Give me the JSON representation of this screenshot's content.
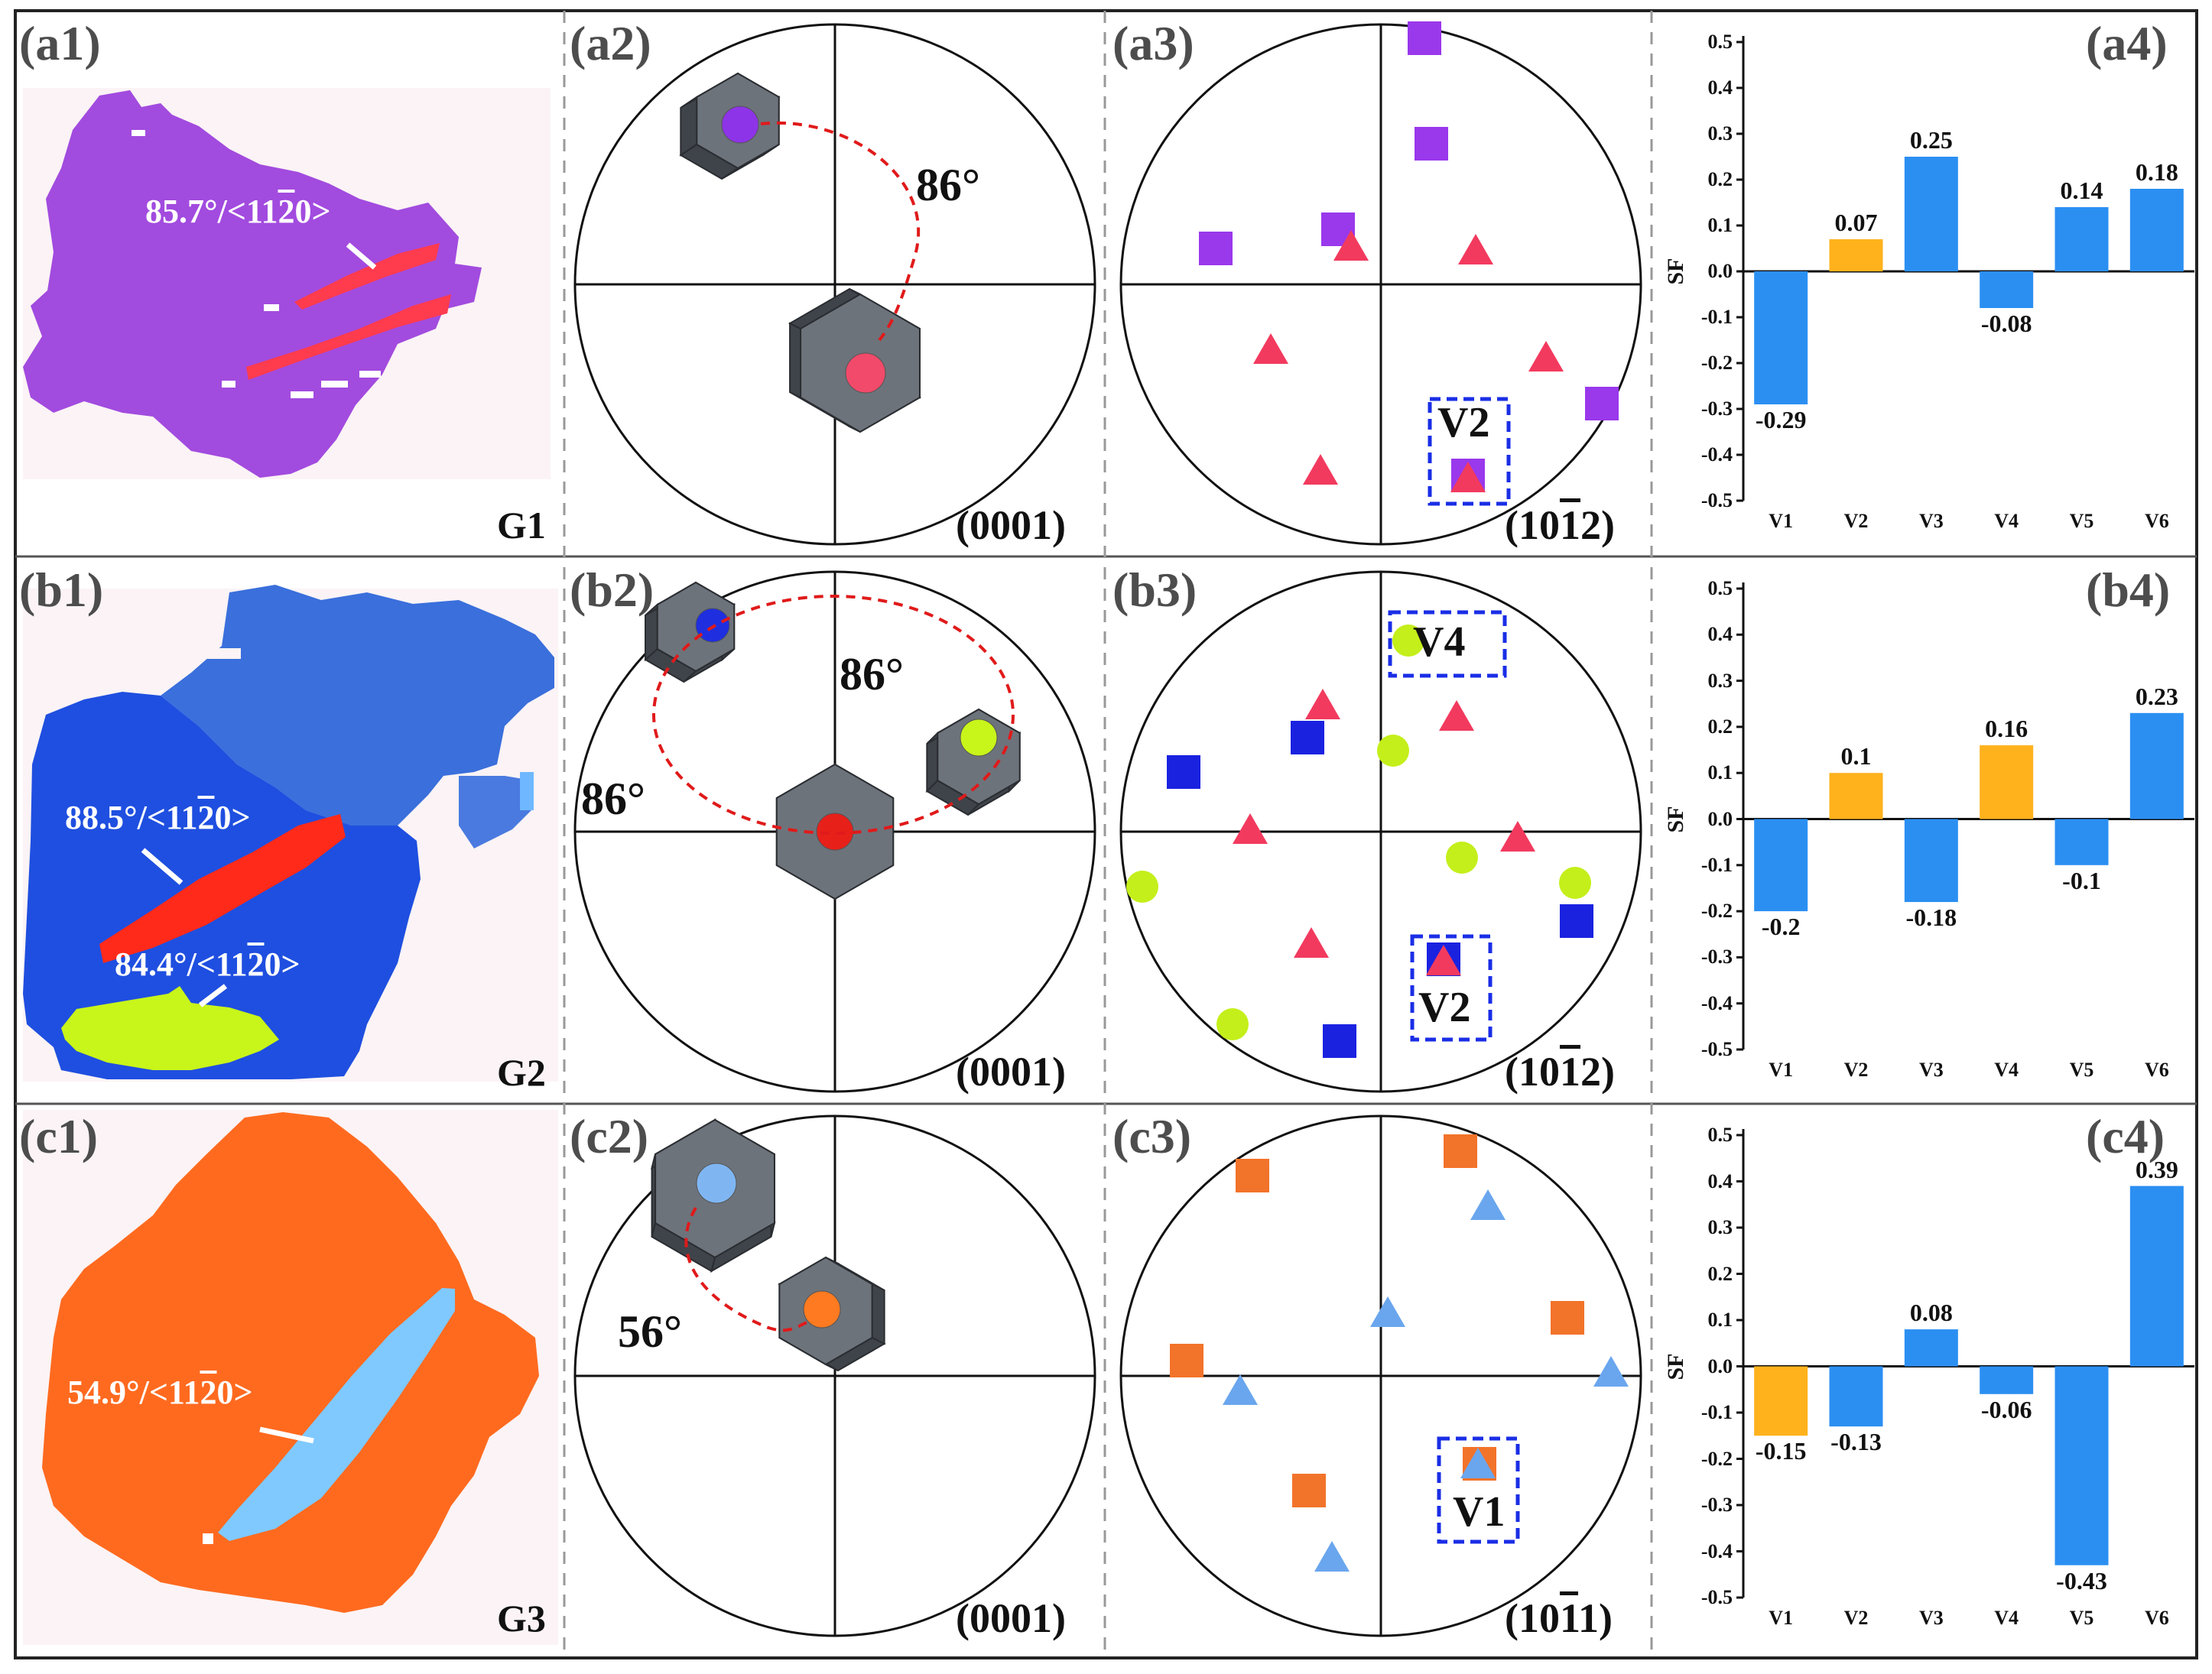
{
  "panel_labels": {
    "a1": "(a1)",
    "a2": "(a2)",
    "a3": "(a3)",
    "a4": "(a4)",
    "b1": "(b1)",
    "b2": "(b2)",
    "b3": "(b3)",
    "b4": "(b4)",
    "c1": "(c1)",
    "c2": "(c2)",
    "c3": "(c3)",
    "c4": "(c4)"
  },
  "grains": {
    "g1": "G1",
    "g2": "G2",
    "g3": "G3"
  },
  "misorientation": {
    "a1": {
      "pre": "85.7°/<11",
      "over": "2",
      "post": "0>"
    },
    "b1_top": {
      "pre": "88.5°/<11",
      "over": "2",
      "post": "0>"
    },
    "b1_bot": {
      "pre": "84.4°/<11",
      "over": "2",
      "post": "0>"
    },
    "c1": {
      "pre": "54.9°/<11",
      "over": "2",
      "post": "0>"
    }
  },
  "colors": {
    "g1_matrix": "#a24bdf",
    "g1_twin": "#ff3b4e",
    "g2_matrix": "#1f4fe0",
    "g2_twin_red": "#ff2a1a",
    "g2_twin_green": "#c8f51a",
    "g3_matrix": "#ff6a1f",
    "g3_twin": "#7fc9ff",
    "bar_blue": "#2b8ff2",
    "bar_orange": "#ffb21c",
    "arc": "#e01a1a",
    "box": "#1a2ee6"
  },
  "pole_figures": {
    "a2": {
      "plane": "(0001)",
      "angle": "86°"
    },
    "a3": {
      "plane_pre": "(10",
      "plane_over": "1",
      "plane_post": "2)",
      "variant": "V2"
    },
    "b2": {
      "plane": "(0001)",
      "angle1": "86°",
      "angle2": "86°"
    },
    "b3": {
      "plane_pre": "(10",
      "plane_over": "1",
      "plane_post": "2)",
      "variant1": "V4",
      "variant2": "V2"
    },
    "c2": {
      "plane": "(0001)",
      "angle": "56°"
    },
    "c3": {
      "plane_pre": "(10",
      "plane_over": "1",
      "plane_post": "1)",
      "variant": "V1"
    }
  },
  "chart_data": [
    {
      "type": "bar",
      "id": "a4",
      "categories": [
        "V1",
        "V2",
        "V3",
        "V4",
        "V5",
        "V6"
      ],
      "values": [
        -0.29,
        0.07,
        0.25,
        -0.08,
        0.14,
        0.18
      ],
      "labels": [
        "-0.29",
        "0.07",
        "0.25",
        "-0.08",
        "0.14",
        "0.18"
      ],
      "highlight": [
        1
      ],
      "ylabel": "SF",
      "ylim": [
        -0.5,
        0.5
      ],
      "yticks": [
        "0.5",
        "0.4",
        "0.3",
        "0.2",
        "0.1",
        "0.0",
        "-0.1",
        "-0.2",
        "-0.3",
        "-0.4",
        "-0.5"
      ]
    },
    {
      "type": "bar",
      "id": "b4",
      "categories": [
        "V1",
        "V2",
        "V3",
        "V4",
        "V5",
        "V6"
      ],
      "values": [
        -0.2,
        0.1,
        -0.18,
        0.16,
        -0.1,
        0.23
      ],
      "labels": [
        "-0.2",
        "0.1",
        "-0.18",
        "0.16",
        "-0.1",
        "0.23"
      ],
      "highlight": [
        1,
        3
      ],
      "ylabel": "SF",
      "ylim": [
        -0.5,
        0.5
      ],
      "yticks": [
        "0.5",
        "0.4",
        "0.3",
        "0.2",
        "0.1",
        "0.0",
        "-0.1",
        "-0.2",
        "-0.3",
        "-0.4",
        "-0.5"
      ]
    },
    {
      "type": "bar",
      "id": "c4",
      "categories": [
        "V1",
        "V2",
        "V3",
        "V4",
        "V5",
        "V6"
      ],
      "values": [
        -0.15,
        -0.13,
        0.08,
        -0.06,
        -0.43,
        0.39
      ],
      "labels": [
        "-0.15",
        "-0.13",
        "0.08",
        "-0.06",
        "-0.43",
        "0.39"
      ],
      "highlight": [
        0
      ],
      "ylabel": "SF",
      "ylim": [
        -0.5,
        0.5
      ],
      "yticks": [
        "0.5",
        "0.4",
        "0.3",
        "0.2",
        "0.1",
        "0.0",
        "-0.1",
        "-0.2",
        "-0.3",
        "-0.4",
        "-0.5"
      ]
    }
  ]
}
